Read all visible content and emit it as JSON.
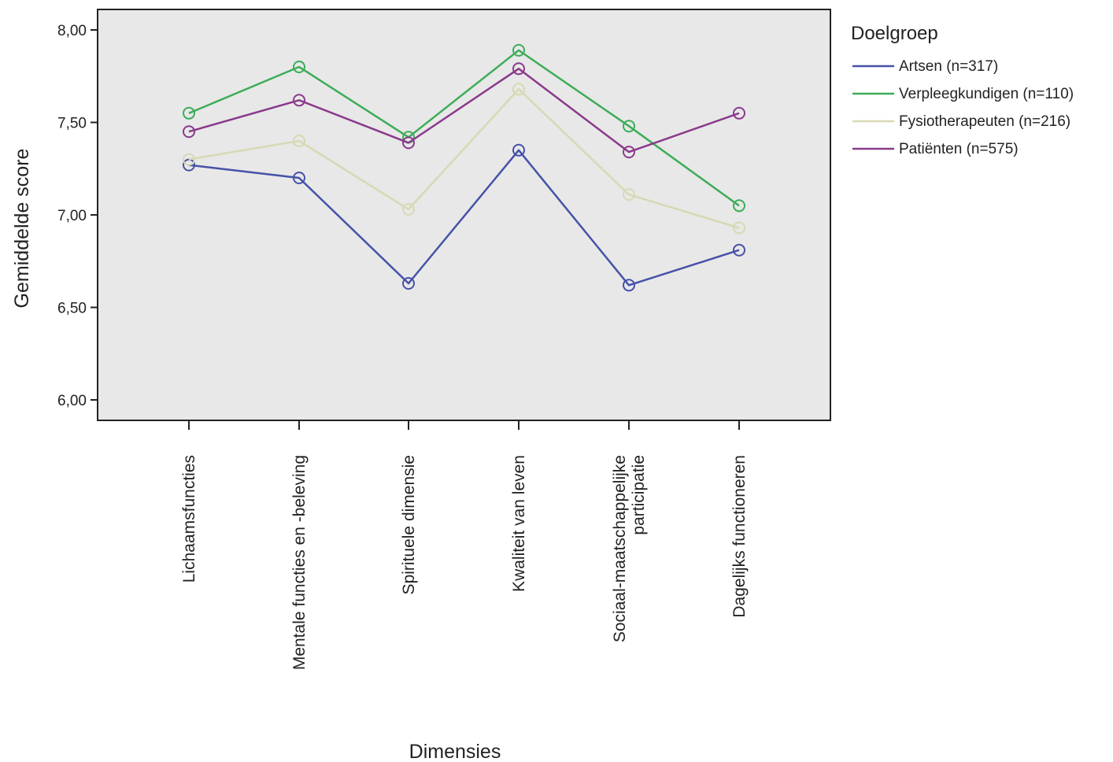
{
  "chart_data": {
    "type": "line",
    "xlabel": "Dimensies",
    "ylabel": "Gemiddelde score",
    "ylim": [
      6.0,
      8.0
    ],
    "yticks": [
      "6,00",
      "6,50",
      "7,00",
      "7,50",
      "8,00"
    ],
    "categories": [
      [
        "Lichaamsfuncties"
      ],
      [
        "Mentale functies en -beleving"
      ],
      [
        "Spirituele dimensie"
      ],
      [
        "Kwaliteit van leven"
      ],
      [
        "Sociaal-maatschappelijke",
        "participatie"
      ],
      [
        "Dagelijks functioneren"
      ]
    ],
    "legend": {
      "title": "Doelgroep",
      "placement": "right"
    },
    "grid": false,
    "plot_background": "#e8e8e8",
    "series": [
      {
        "name": "Artsen (n=317)",
        "color": "#4652a8",
        "values": [
          7.27,
          7.2,
          6.63,
          7.35,
          6.62,
          6.81
        ]
      },
      {
        "name": "Verpleegkundigen (n=110)",
        "color": "#3dad58",
        "values": [
          7.55,
          7.8,
          7.42,
          7.89,
          7.48,
          7.05
        ]
      },
      {
        "name": "Fysiotherapeuten (n=216)",
        "color": "#d8d8b4",
        "values": [
          7.3,
          7.4,
          7.03,
          7.68,
          7.11,
          6.93
        ]
      },
      {
        "name": "Patiënten (n=575)",
        "color": "#8a3a8c",
        "values": [
          7.45,
          7.62,
          7.39,
          7.79,
          7.34,
          7.55
        ]
      }
    ]
  }
}
